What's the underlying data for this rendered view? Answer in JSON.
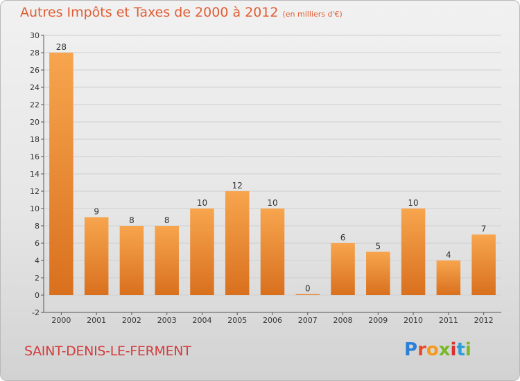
{
  "header": {
    "title": "Autres Impôts et Taxes de 2000 à 2012",
    "unit": "(en milliers d'€)"
  },
  "footer": {
    "commune": "SAINT-DENIS-LE-FERMENT",
    "logo_letters": [
      "P",
      "r",
      "o",
      "x",
      "i",
      "t",
      "i"
    ],
    "logo_colors": [
      "#2b7fd9",
      "#e84b27",
      "#f39a1f",
      "#7ab828",
      "#d8312f",
      "#2b9fd9",
      "#7ab828"
    ]
  },
  "colors": {
    "bar_top": "#f7a54e",
    "bar_bottom": "#d9701e",
    "grid": "#cfcfcf",
    "axis": "#555555"
  },
  "chart_data": {
    "type": "bar",
    "categories": [
      "2000",
      "2001",
      "2002",
      "2003",
      "2004",
      "2005",
      "2006",
      "2007",
      "2008",
      "2009",
      "2010",
      "2011",
      "2012"
    ],
    "values": [
      28,
      9,
      8,
      8,
      10,
      12,
      10,
      0,
      6,
      5,
      10,
      4,
      7
    ],
    "title": "Autres Impôts et Taxes de 2000 à 2012",
    "ylim": [
      -2,
      30
    ],
    "yticks": [
      -2,
      0,
      2,
      4,
      6,
      8,
      10,
      12,
      14,
      16,
      18,
      20,
      22,
      24,
      26,
      28,
      30
    ],
    "grid": "horizontal"
  }
}
